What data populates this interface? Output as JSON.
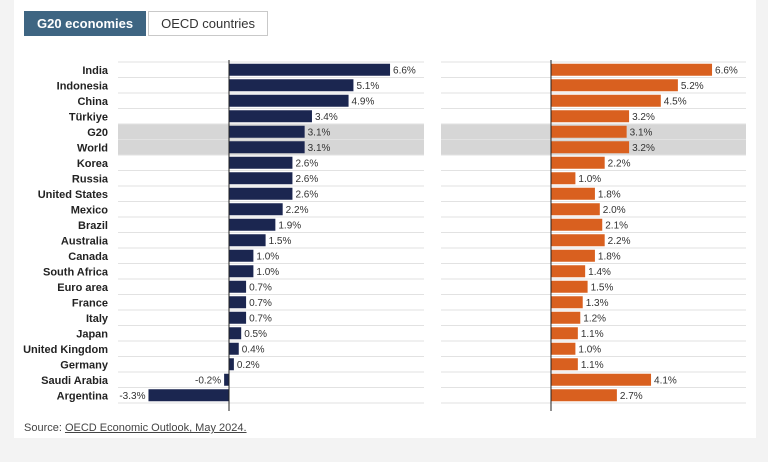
{
  "tabs": [
    {
      "label": "G20 economies",
      "active": true
    },
    {
      "label": "OECD countries",
      "active": false
    }
  ],
  "source": {
    "prefix": "Source: ",
    "link_text": "OECD Economic Outlook, May 2024."
  },
  "colors": {
    "left_series": "#1b2650",
    "right_series": "#d9601f",
    "highlight": "#d6d6d6",
    "tab_active": "#3e6582"
  },
  "chart_data": [
    {
      "type": "bar",
      "orientation": "horizontal",
      "categories": [
        "India",
        "Indonesia",
        "China",
        "Türkiye",
        "G20",
        "World",
        "Korea",
        "Russia",
        "United States",
        "Mexico",
        "Brazil",
        "Australia",
        "Canada",
        "South Africa",
        "Euro area",
        "France",
        "Italy",
        "Japan",
        "United Kingdom",
        "Germany",
        "Saudi Arabia",
        "Argentina"
      ],
      "highlighted": [
        "G20",
        "World"
      ],
      "series": [
        {
          "values": [
            6.6,
            5.1,
            4.9,
            3.4,
            3.1,
            3.1,
            2.6,
            2.6,
            2.6,
            2.2,
            1.9,
            1.5,
            1.0,
            1.0,
            0.7,
            0.7,
            0.7,
            0.5,
            0.4,
            0.2,
            -0.2,
            -3.3
          ]
        }
      ],
      "value_suffix": "%"
    },
    {
      "type": "bar",
      "orientation": "horizontal",
      "categories": [
        "India",
        "Indonesia",
        "China",
        "Türkiye",
        "G20",
        "World",
        "Korea",
        "Russia",
        "United States",
        "Mexico",
        "Brazil",
        "Australia",
        "Canada",
        "South Africa",
        "Euro area",
        "France",
        "Italy",
        "Japan",
        "United Kingdom",
        "Germany",
        "Saudi Arabia",
        "Argentina"
      ],
      "highlighted": [
        "G20",
        "World"
      ],
      "series": [
        {
          "values": [
            6.6,
            5.2,
            4.5,
            3.2,
            3.1,
            3.2,
            2.2,
            1.0,
            1.8,
            2.0,
            2.1,
            2.2,
            1.8,
            1.4,
            1.5,
            1.3,
            1.2,
            1.1,
            1.0,
            1.1,
            4.1,
            2.7
          ]
        }
      ],
      "value_suffix": "%"
    }
  ]
}
